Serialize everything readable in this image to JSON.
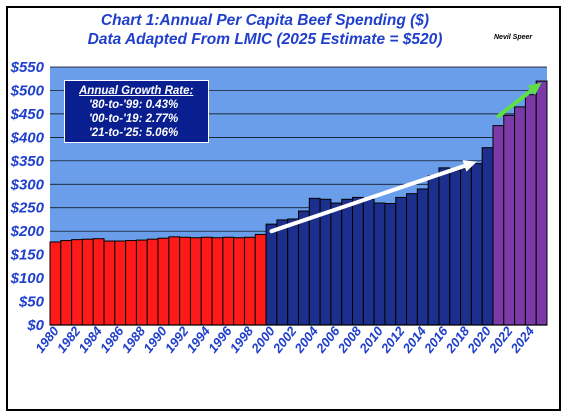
{
  "chart_data": {
    "type": "bar",
    "title": "Chart 1:Annual Per Capita Beef Spending ($)",
    "subtitle": "Data Adapted From LMIC (2025 Estimate = $520)",
    "author": "Nevil Speer",
    "xlabel": "",
    "ylabel": "",
    "ylim": [
      0,
      550
    ],
    "y_ticks": [
      "$0",
      "$50",
      "$100",
      "$150",
      "$200",
      "$250",
      "$300",
      "$350",
      "$400",
      "$450",
      "$500",
      "$550"
    ],
    "x_tick_labels": [
      "1980",
      "1982",
      "1984",
      "1986",
      "1988",
      "1990",
      "1992",
      "1994",
      "1996",
      "1998",
      "2000",
      "2002",
      "2004",
      "2006",
      "2008",
      "2010",
      "2012",
      "2014",
      "2016",
      "2018",
      "2020",
      "2022",
      "2024"
    ],
    "grid": true,
    "background_color": "#6a9eea",
    "categories": [
      "1980",
      "1981",
      "1982",
      "1983",
      "1984",
      "1985",
      "1986",
      "1987",
      "1988",
      "1989",
      "1990",
      "1991",
      "1992",
      "1993",
      "1994",
      "1995",
      "1996",
      "1997",
      "1998",
      "1999",
      "2000",
      "2001",
      "2002",
      "2003",
      "2004",
      "2005",
      "2006",
      "2007",
      "2008",
      "2009",
      "2010",
      "2011",
      "2012",
      "2013",
      "2014",
      "2015",
      "2016",
      "2017",
      "2018",
      "2019",
      "2020",
      "2021",
      "2022",
      "2023",
      "2024",
      "2025"
    ],
    "values": [
      177,
      180,
      182,
      183,
      184,
      179,
      179,
      180,
      181,
      183,
      185,
      188,
      187,
      186,
      187,
      186,
      187,
      186,
      187,
      193,
      215,
      224,
      226,
      243,
      270,
      268,
      260,
      268,
      272,
      268,
      260,
      259,
      272,
      280,
      290,
      318,
      335,
      330,
      333,
      344,
      378,
      425,
      447,
      465,
      491,
      520
    ],
    "period_colors": [
      {
        "from": "1980",
        "to": "1999",
        "color": "#ff1a1a"
      },
      {
        "from": "2000",
        "to": "2020",
        "color": "#1d2f8c"
      },
      {
        "from": "2021",
        "to": "2025",
        "color": "#7b3aa8"
      }
    ],
    "trend_arrows": [
      {
        "from_year": "2000",
        "from_value": 200,
        "to_year": "2019",
        "to_value": 348,
        "color": "#ffffff"
      },
      {
        "from_year": "2021",
        "from_value": 445,
        "to_year": "2025",
        "to_value": 517,
        "color": "#5de043"
      }
    ],
    "annotation": {
      "title": "Annual Growth Rate:",
      "items": [
        "'80-to-'99: 0.43%",
        "'00-to-'19: 2.77%",
        "'21-to-'25: 5.06%"
      ],
      "background": "#0a1f8f",
      "position": "top-left"
    },
    "colors": {
      "title": "#1f3fcc",
      "axis_label": "#1f3fcc"
    }
  }
}
